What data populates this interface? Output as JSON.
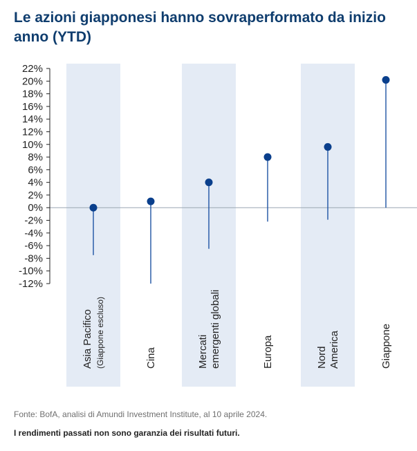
{
  "title": "Le azioni giapponesi hanno sovraperformato da inizio anno (YTD)",
  "source": "Fonte: BofA, analisi di Amundi Investment Institute, al 10 aprile 2024.",
  "disclaimer": "I rendimenti passati non sono garanzia dei risultati futuri.",
  "colors": {
    "title": "#0f3d6e",
    "marker": "#0a3f8c",
    "stem": "#1c52a3",
    "band": "#e4ebf5",
    "axis": "#222222",
    "zero_line": "#9aa6b2"
  },
  "chart_data": {
    "type": "scatter",
    "title": "",
    "xlabel": "",
    "ylabel": "",
    "ylim": [
      -12,
      22
    ],
    "yticks": [
      22,
      20,
      18,
      16,
      14,
      12,
      10,
      8,
      6,
      4,
      2,
      0,
      -2,
      -4,
      -6,
      -8,
      -10,
      -12
    ],
    "ytick_labels": [
      "22%",
      "20%",
      "18%",
      "16%",
      "14%",
      "12%",
      "10%",
      "8%",
      "6%",
      "4%",
      "2%",
      "0%",
      "-2%",
      "-4%",
      "-6%",
      "-8%",
      "-10%",
      "-12%"
    ],
    "shaded_categories": [
      0,
      2,
      4
    ],
    "categories": [
      {
        "lines": [
          "Asia Pacifico",
          "(Giappone escluso)"
        ],
        "value": 0.0,
        "range": [
          -7.5,
          0.0
        ]
      },
      {
        "lines": [
          "Cina"
        ],
        "value": 1.0,
        "range": [
          -12.0,
          1.0
        ]
      },
      {
        "lines": [
          "Mercati",
          "emergenti globali"
        ],
        "value": 4.0,
        "range": [
          -6.5,
          4.0
        ]
      },
      {
        "lines": [
          "Europa"
        ],
        "value": 8.0,
        "range": [
          -2.2,
          8.0
        ]
      },
      {
        "lines": [
          "Nord",
          "America"
        ],
        "value": 9.6,
        "range": [
          -1.9,
          9.6
        ]
      },
      {
        "lines": [
          "Giappone"
        ],
        "value": 20.2,
        "range": [
          0.0,
          20.2
        ]
      }
    ]
  }
}
